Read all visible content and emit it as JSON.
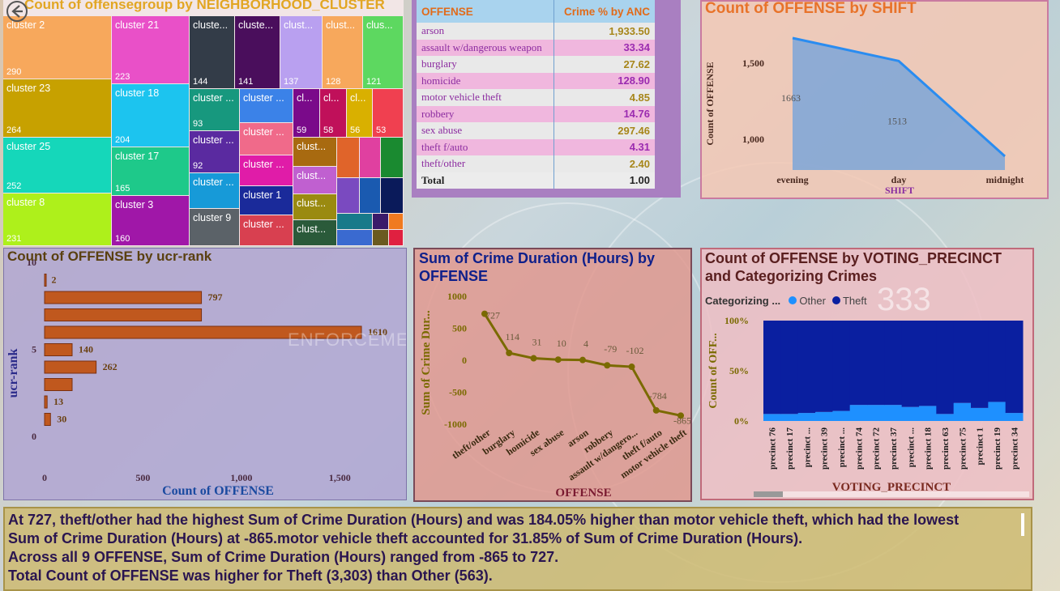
{
  "treemap": {
    "title": "Count of offensegroup by NEIGHBORHOOD_CLUSTER",
    "cells": [
      {
        "label": "cluster 2",
        "value": "290",
        "color": "#f7a85c"
      },
      {
        "label": "cluster 23",
        "value": "264",
        "color": "#c7a100"
      },
      {
        "label": "cluster 25",
        "value": "252",
        "color": "#15d7ba"
      },
      {
        "label": "cluster 8",
        "value": "231",
        "color": "#aef01b"
      },
      {
        "label": "cluster 21",
        "value": "223",
        "color": "#e950c8"
      },
      {
        "label": "cluster 18",
        "value": "204",
        "color": "#1cc4ef"
      },
      {
        "label": "cluster 17",
        "value": "165",
        "color": "#1ec98a"
      },
      {
        "label": "cluster 3",
        "value": "160",
        "color": "#a017a8"
      },
      {
        "label": "cluste...",
        "value": "144",
        "color": "#333c48"
      },
      {
        "label": "cluste...",
        "value": "141",
        "color": "#4a0e5c"
      },
      {
        "label": "clust...",
        "value": "137",
        "color": "#b9a0f0"
      },
      {
        "label": "clust...",
        "value": "128",
        "color": "#f7a85c"
      },
      {
        "label": "clus...",
        "value": "121",
        "color": "#5dd860"
      },
      {
        "label": "cluster ...",
        "value": "93",
        "color": "#17987e"
      },
      {
        "label": "cluster ...",
        "value": "92",
        "color": "#5a2aa0"
      },
      {
        "label": "cluster ...",
        "value": "",
        "color": "#179ad8"
      },
      {
        "label": "cluster 9",
        "value": "",
        "color": "#5b6268"
      },
      {
        "label": "cluster ...",
        "value": "",
        "color": "#3b82e8"
      },
      {
        "label": "cluster ...",
        "value": "",
        "color": "#f06a8a"
      },
      {
        "label": "cluster ...",
        "value": "",
        "color": "#e01ca8"
      },
      {
        "label": "cluster 1",
        "value": "",
        "color": "#1a2a9a"
      },
      {
        "label": "cluster ...",
        "value": "",
        "color": "#d84050"
      },
      {
        "label": "cl...",
        "value": "59",
        "color": "#7a0a8a"
      },
      {
        "label": "cl...",
        "value": "58",
        "color": "#c0105a"
      },
      {
        "label": "cl...",
        "value": "56",
        "color": "#d9b000"
      },
      {
        "label": "",
        "value": "53",
        "color": "#f04050"
      },
      {
        "label": "clust...",
        "value": "",
        "color": "#a86a10"
      },
      {
        "label": "clust...",
        "value": "",
        "color": "#c060d0"
      },
      {
        "label": "clust...",
        "value": "",
        "color": "#9a8a10"
      },
      {
        "label": "clust...",
        "value": "",
        "color": "#2a5a3a"
      }
    ]
  },
  "table": {
    "headers": [
      "OFFENSE",
      "Crime % by ANC"
    ],
    "rows": [
      [
        "arson",
        "1,933.50"
      ],
      [
        "assault w/dangerous weapon",
        "33.34"
      ],
      [
        "burglary",
        "27.62"
      ],
      [
        "homicide",
        "128.90"
      ],
      [
        "motor vehicle theft",
        "4.85"
      ],
      [
        "robbery",
        "14.76"
      ],
      [
        "sex abuse",
        "297.46"
      ],
      [
        "theft f/auto",
        "4.31"
      ],
      [
        "theft/other",
        "2.40"
      ]
    ],
    "total": [
      "Total",
      "1.00"
    ]
  },
  "shift_chart": {
    "title": "Count of OFFENSE by SHIFT",
    "chart_data": {
      "type": "area",
      "categories": [
        "evening",
        "day",
        "midnight"
      ],
      "values": [
        1663,
        1513,
        null
      ],
      "data_labels": [
        "1663",
        "1513",
        ""
      ],
      "xlabel": "SHIFT",
      "ylabel": "Count of OFFENSE",
      "yticks": [
        "1,000",
        "1,500"
      ],
      "ylim": [
        800,
        1700
      ]
    }
  },
  "ucr_chart": {
    "title": "Count of OFFENSE by ucr-rank",
    "chart_data": {
      "type": "bar",
      "orientation": "horizontal",
      "ranks": [
        9,
        8,
        7,
        6,
        5,
        4,
        3,
        2,
        1
      ],
      "values": [
        2,
        797,
        797,
        1610,
        140,
        262,
        140,
        13,
        30
      ],
      "data_labels": [
        "2",
        "797",
        "",
        "1610",
        "140",
        "262",
        "",
        "13",
        "30"
      ],
      "xlabel": "Count of OFFENSE",
      "ylabel": "ucr-rank",
      "xticks": [
        "0",
        "500",
        "1,000",
        "1,500"
      ],
      "xlim": [
        0,
        1820
      ],
      "yticks": [
        "10",
        "5",
        "0"
      ],
      "bar_color": "#c0581e"
    }
  },
  "duration_chart": {
    "title_line1": "Sum of Crime Duration (Hours) by",
    "title_line2": "OFFENSE",
    "chart_data": {
      "type": "line",
      "categories": [
        "theft/other",
        "burglary",
        "homicide",
        "sex abuse",
        "arson",
        "robbery",
        "assault w/dangero...",
        "theft f/auto",
        "motor vehicle theft"
      ],
      "values": [
        727,
        114,
        31,
        10,
        4,
        -79,
        -102,
        -784,
        -865
      ],
      "data_labels": [
        "727",
        "114",
        "31",
        "10",
        "4",
        "-79",
        "-102",
        "-784",
        "-865"
      ],
      "xlabel": "OFFENSE",
      "ylabel": "Sum of Crime Dur...",
      "yticks": [
        "1000",
        "500",
        "0",
        "-500",
        "-1000"
      ],
      "ylim": [
        -1000,
        1000
      ],
      "line_color": "#7a6a00"
    }
  },
  "precinct_chart": {
    "title_line1": "Count of OFFENSE by VOTING_PRECINCT",
    "title_line2": "and Categorizing Crimes",
    "legend_title": "Categorizing ...",
    "legend": [
      {
        "name": "Other",
        "color": "#1e90ff"
      },
      {
        "name": "Theft",
        "color": "#0a1fa0"
      }
    ],
    "chart_data": {
      "type": "bar",
      "stacked_percent": true,
      "categories": [
        "precinct 76",
        "precinct 17",
        "precinct ...",
        "precinct 39",
        "precinct ...",
        "precinct 74",
        "precinct 72",
        "precinct 37",
        "precinct ...",
        "precinct 18",
        "precinct 63",
        "precinct 75",
        "precinct 1",
        "precinct 19",
        "precinct 34"
      ],
      "series": [
        {
          "name": "Other",
          "values": [
            0.07,
            0.07,
            0.08,
            0.09,
            0.1,
            0.16,
            0.16,
            0.16,
            0.14,
            0.15,
            0.07,
            0.18,
            0.13,
            0.19,
            0.08
          ]
        },
        {
          "name": "Theft",
          "values": [
            0.93,
            0.93,
            0.92,
            0.91,
            0.9,
            0.84,
            0.84,
            0.84,
            0.86,
            0.85,
            0.93,
            0.82,
            0.87,
            0.81,
            0.92
          ]
        }
      ],
      "xlabel": "VOTING_PRECINCT",
      "ylabel": "Count of OFF...",
      "yticks": [
        "100%",
        "50%",
        "0%"
      ]
    }
  },
  "narrative": {
    "line1": "At 727, theft/other had the highest Sum of Crime Duration (Hours) and was 184.05% higher than motor vehicle theft, which had the lowest",
    "line2": "Sum of Crime Duration (Hours) at -865.motor vehicle theft accounted for 31.85% of Sum of Crime Duration (Hours).",
    "line3": "Across all 9 OFFENSE, Sum of Crime Duration (Hours) ranged from -865 to 727.",
    "line4": "Total Count of OFFENSE was higher for Theft (3,303) than Other (563)."
  },
  "background_text": {
    "enforcement": "ENFORCEMENT",
    "badge_number": "333"
  }
}
